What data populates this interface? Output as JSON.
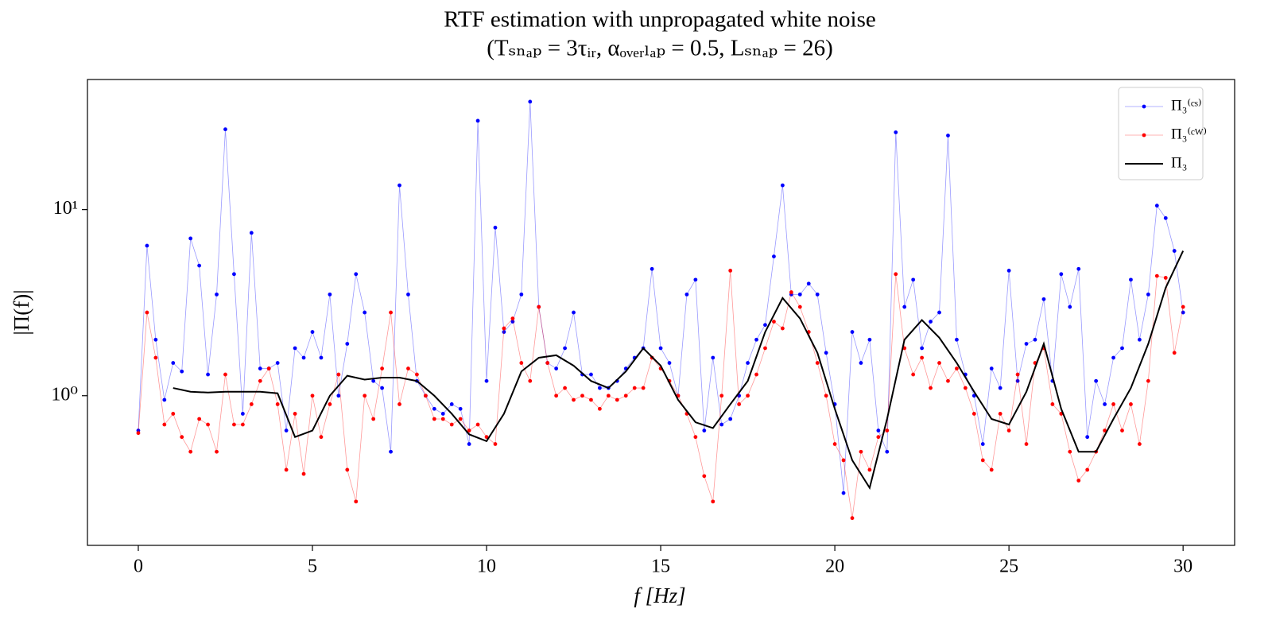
{
  "chart_data": {
    "type": "line",
    "title": "RTF estimation with unpropagated white noise",
    "subtitle": "(Tₛₙₐₚ = 3τᵢᵣ,   αₒᵥₑᵣₗₐₚ = 0.5,   Lₛₙₐₚ = 26)",
    "xlabel": "f [Hz]",
    "ylabel": "|Π(f)|",
    "xlim": [
      -1.46,
      31.48
    ],
    "xticks": [
      0,
      5,
      10,
      15,
      20,
      25,
      30
    ],
    "ylim": [
      0.157,
      50
    ],
    "yscale": "log",
    "yticks": [
      {
        "value": 1,
        "label": "10⁰"
      },
      {
        "value": 10,
        "label": "10¹"
      }
    ],
    "legend": "upper right",
    "x": [
      0,
      0.25,
      0.5,
      0.75,
      1,
      1.25,
      1.5,
      1.75,
      2,
      2.25,
      2.5,
      2.75,
      3,
      3.25,
      3.5,
      3.75,
      4,
      4.25,
      4.5,
      4.75,
      5,
      5.25,
      5.5,
      5.75,
      6,
      6.25,
      6.5,
      6.75,
      7,
      7.25,
      7.5,
      7.75,
      8,
      8.25,
      8.5,
      8.75,
      9,
      9.25,
      9.5,
      9.75,
      10,
      10.25,
      10.5,
      10.75,
      11,
      11.25,
      11.5,
      11.75,
      12,
      12.25,
      12.5,
      12.75,
      13,
      13.25,
      13.5,
      13.75,
      14,
      14.25,
      14.5,
      14.75,
      15,
      15.25,
      15.5,
      15.75,
      16,
      16.25,
      16.5,
      16.75,
      17,
      17.25,
      17.5,
      17.75,
      18,
      18.25,
      18.5,
      18.75,
      19,
      19.25,
      19.5,
      19.75,
      20,
      20.25,
      20.5,
      20.75,
      21,
      21.25,
      21.5,
      21.75,
      22,
      22.25,
      22.5,
      22.75,
      23,
      23.25,
      23.5,
      23.75,
      24,
      24.25,
      24.5,
      24.75,
      25,
      25.25,
      25.5,
      25.75,
      26,
      26.25,
      26.5,
      26.75,
      27,
      27.25,
      27.5,
      27.75,
      28,
      28.25,
      28.5,
      28.75,
      29,
      29.25,
      29.5,
      29.75,
      30
    ],
    "series": [
      {
        "name": "Π₃⁽ᶜˢ⁾",
        "color": "#0000ff",
        "marker": true,
        "values": [
          0.65,
          6.4,
          2.0,
          0.95,
          1.5,
          1.35,
          7,
          5,
          1.3,
          3.5,
          27,
          4.5,
          0.8,
          7.5,
          1.4,
          1.4,
          1.5,
          0.65,
          1.8,
          1.6,
          2.2,
          1.6,
          3.5,
          1.0,
          1.9,
          4.5,
          2.8,
          1.2,
          1.1,
          0.5,
          13.5,
          3.5,
          1.2,
          1.0,
          0.85,
          0.8,
          0.9,
          0.85,
          0.55,
          30,
          1.2,
          8,
          2.2,
          2.5,
          3.5,
          38,
          3.0,
          1.5,
          1.4,
          1.8,
          2.8,
          1.3,
          1.3,
          1.1,
          1.1,
          1.2,
          1.4,
          1.6,
          1.8,
          4.8,
          1.8,
          1.5,
          1.0,
          3.5,
          4.2,
          0.65,
          1.6,
          0.7,
          0.75,
          1.0,
          1.5,
          2.0,
          2.4,
          5.6,
          13.5,
          3.5,
          3.5,
          4.0,
          3.5,
          1.7,
          0.9,
          0.3,
          2.2,
          1.5,
          2.0,
          0.65,
          0.5,
          26,
          3.0,
          4.2,
          1.8,
          2.5,
          2.8,
          25,
          2.0,
          1.3,
          1.0,
          0.55,
          1.4,
          1.1,
          4.7,
          1.2,
          1.9,
          2.0,
          3.3,
          1.2,
          4.5,
          3.0,
          4.8,
          0.6,
          1.2,
          0.9,
          1.6,
          1.8,
          4.2,
          2.0,
          3.5,
          10.5,
          9,
          6,
          2.8
        ]
      },
      {
        "name": "Π₃⁽ᶜᵂ⁾",
        "color": "#ff0000",
        "marker": true,
        "values": [
          0.63,
          2.8,
          1.6,
          0.7,
          0.8,
          0.6,
          0.5,
          0.75,
          0.7,
          0.5,
          1.3,
          0.7,
          0.7,
          0.9,
          1.2,
          1.4,
          0.9,
          0.4,
          0.8,
          0.38,
          1.0,
          0.6,
          0.9,
          1.3,
          0.4,
          0.27,
          1.0,
          0.75,
          1.4,
          2.8,
          0.9,
          1.4,
          1.3,
          1.0,
          0.75,
          0.75,
          0.7,
          0.75,
          0.65,
          0.7,
          0.6,
          0.55,
          2.3,
          2.6,
          1.5,
          1.2,
          3.0,
          1.5,
          1.0,
          1.1,
          0.95,
          1.0,
          0.95,
          0.85,
          1.0,
          0.95,
          1.0,
          1.1,
          1.1,
          1.6,
          1.4,
          1.2,
          1.0,
          0.8,
          0.6,
          0.37,
          0.27,
          1.0,
          4.7,
          0.9,
          1.0,
          1.3,
          1.8,
          2.5,
          2.3,
          3.6,
          3.0,
          2.2,
          1.5,
          1.0,
          0.55,
          0.45,
          0.22,
          0.5,
          0.4,
          0.6,
          0.65,
          4.5,
          1.8,
          1.3,
          1.6,
          1.1,
          1.5,
          1.2,
          1.4,
          1.1,
          0.8,
          0.45,
          0.4,
          0.8,
          0.65,
          1.3,
          0.55,
          1.5,
          1.8,
          0.9,
          0.8,
          0.5,
          0.35,
          0.4,
          0.5,
          0.65,
          0.9,
          0.65,
          0.9,
          0.55,
          1.2,
          4.4,
          4.3,
          1.7,
          3.0
        ]
      },
      {
        "name": "Π₃",
        "color": "#000000",
        "marker": false,
        "x": [
          1,
          1.5,
          2,
          2.5,
          3,
          3.5,
          4,
          4.5,
          5,
          5.5,
          6,
          6.5,
          7,
          7.5,
          8,
          8.5,
          9,
          9.5,
          10,
          10.5,
          11,
          11.5,
          12,
          12.5,
          13,
          13.5,
          14,
          14.5,
          15,
          15.5,
          16,
          16.5,
          17,
          17.5,
          18,
          18.5,
          19,
          19.5,
          20,
          20.5,
          21,
          21.5,
          22,
          22.5,
          23,
          23.5,
          24,
          24.5,
          25,
          25.5,
          26,
          26.5,
          27,
          27.5,
          28,
          28.5,
          29,
          29.5,
          30
        ],
        "values": [
          1.1,
          1.05,
          1.04,
          1.05,
          1.05,
          1.05,
          1.03,
          0.6,
          0.65,
          1.0,
          1.28,
          1.22,
          1.25,
          1.25,
          1.2,
          1.0,
          0.8,
          0.62,
          0.57,
          0.8,
          1.35,
          1.6,
          1.65,
          1.45,
          1.2,
          1.1,
          1.35,
          1.8,
          1.45,
          0.95,
          0.72,
          0.67,
          0.9,
          1.2,
          2.2,
          3.35,
          2.6,
          1.7,
          0.85,
          0.45,
          0.32,
          0.75,
          2.0,
          2.55,
          2.05,
          1.5,
          1.05,
          0.75,
          0.7,
          1.05,
          1.9,
          0.85,
          0.5,
          0.5,
          0.75,
          1.1,
          1.9,
          3.8,
          6.0
        ]
      }
    ]
  }
}
